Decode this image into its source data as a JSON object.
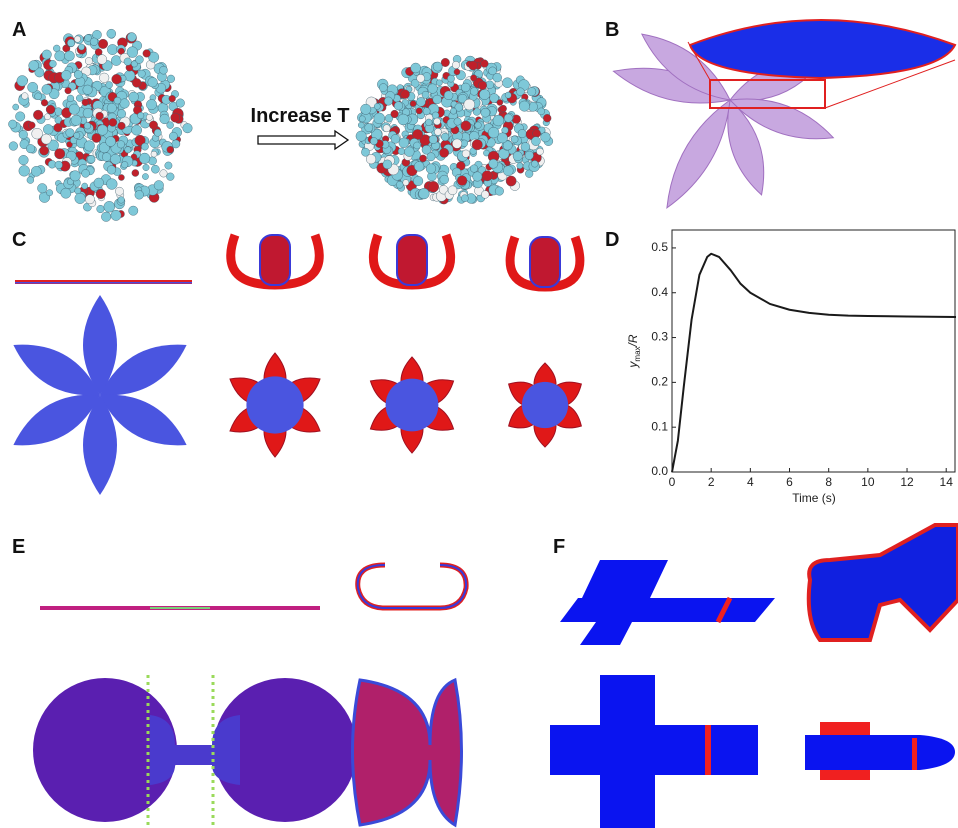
{
  "figure": {
    "panels": [
      "A",
      "B",
      "C",
      "D",
      "E",
      "F"
    ],
    "annotation": "Increase T"
  },
  "chart_data": {
    "type": "line",
    "xlabel": "Time (s)",
    "ylabel": {
      "symbol": "y",
      "subscript": "max",
      "rest": "/R"
    },
    "x": [
      0,
      0.3,
      0.6,
      1,
      1.4,
      1.8,
      2,
      2.4,
      3,
      3.5,
      4,
      5,
      6,
      7,
      8,
      9,
      10,
      12,
      14.5
    ],
    "series": [
      {
        "color": "#1a1a1a",
        "values": [
          0,
          0.07,
          0.19,
          0.34,
          0.44,
          0.48,
          0.487,
          0.48,
          0.45,
          0.42,
          0.4,
          0.375,
          0.362,
          0.355,
          0.351,
          0.349,
          0.348,
          0.347,
          0.346
        ]
      }
    ],
    "xlim": [
      0,
      14.5
    ],
    "ylim": [
      0,
      0.54
    ],
    "xticks": [
      0,
      2,
      4,
      6,
      8,
      10,
      12,
      14
    ],
    "yticks": [
      {
        "value": 0,
        "label": "0.0"
      },
      0.1,
      0.2,
      0.3,
      0.4,
      0.5
    ]
  }
}
